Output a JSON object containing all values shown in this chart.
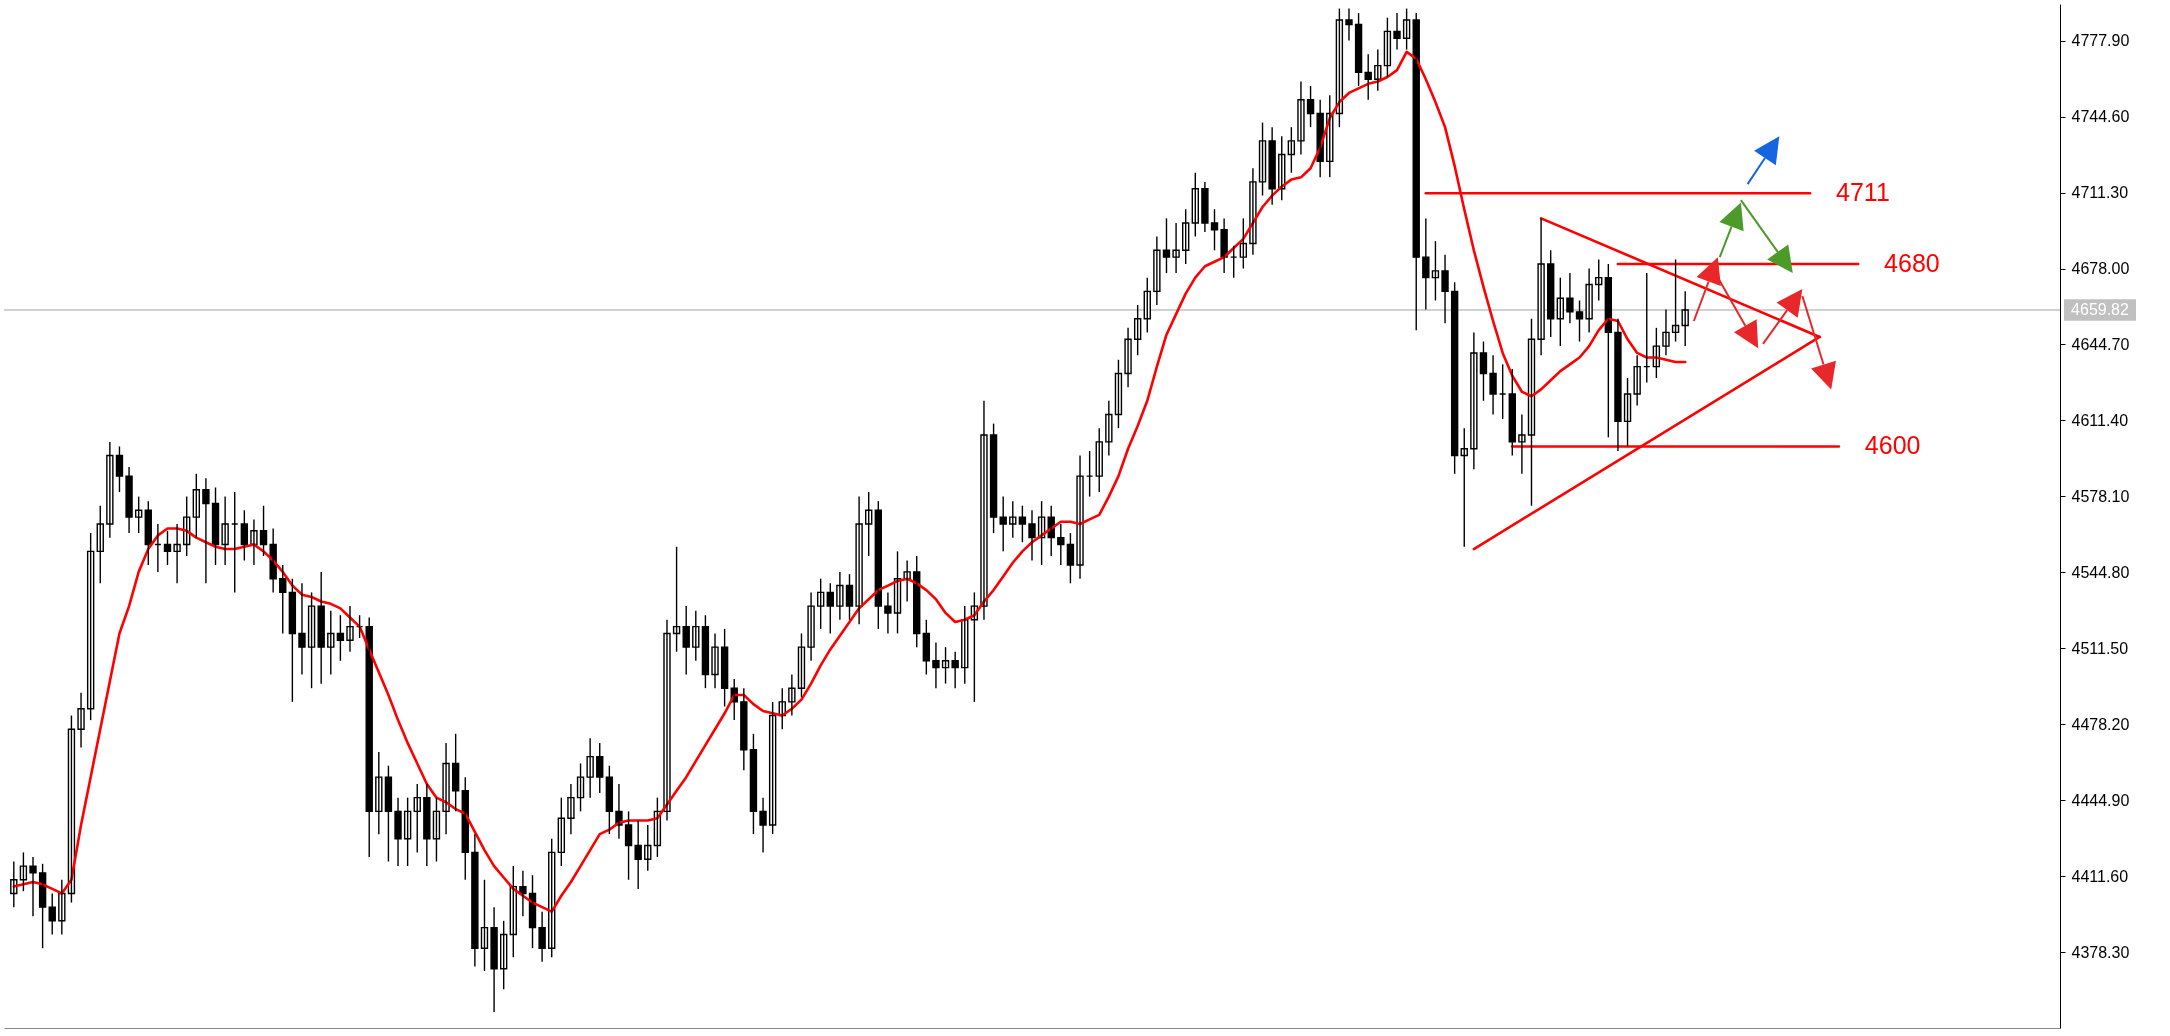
{
  "chart_data": {
    "type": "candlestick",
    "categories": [
      null,
      null,
      null,
      null,
      null,
      null,
      null,
      null,
      null,
      null,
      null,
      null,
      null,
      null,
      null,
      null,
      null,
      null,
      null,
      null,
      null,
      null,
      null,
      null,
      null,
      null,
      null,
      null,
      null,
      null,
      null,
      null,
      null,
      null,
      null,
      null,
      null,
      null,
      null,
      null,
      null,
      null,
      null,
      null,
      null,
      null,
      null,
      null,
      null,
      null,
      null,
      null,
      null,
      null,
      null,
      null,
      null,
      null,
      null,
      null,
      null,
      null,
      null,
      null,
      null,
      null,
      null,
      null,
      null,
      null,
      null,
      null,
      null,
      null,
      null,
      null,
      null,
      null,
      null,
      null,
      null,
      null,
      null,
      null,
      null,
      null,
      null,
      null,
      null,
      null,
      null,
      null,
      null,
      null,
      null,
      null,
      null,
      null,
      null,
      null,
      null,
      null,
      null,
      null,
      null,
      null,
      null,
      null,
      null,
      null,
      null,
      null,
      null,
      null,
      null,
      null,
      null,
      null,
      null,
      null,
      null,
      null,
      null,
      null,
      null,
      null,
      null,
      null,
      null,
      null,
      null,
      null,
      null,
      null,
      null,
      null,
      null,
      null,
      null,
      null,
      null,
      null,
      null,
      null,
      null,
      null,
      null,
      null,
      null,
      null,
      null,
      null,
      null,
      null,
      null,
      null,
      null,
      null,
      null,
      null,
      null,
      null,
      null,
      null,
      null,
      null,
      null,
      null,
      null,
      null,
      null,
      null,
      null,
      null,
      null,
      null,
      null,
      null,
      null,
      null,
      null,
      null,
      null,
      null,
      null,
      null,
      null,
      null,
      null,
      null,
      null,
      null,
      null,
      null,
      null,
      null,
      null,
      null,
      null,
      null,
      null,
      null,
      null,
      null,
      null,
      null,
      null,
      null,
      null,
      null,
      null,
      null,
      null
    ],
    "ohlc": [
      [
        4404,
        4418,
        4398,
        4410
      ],
      [
        4410,
        4422,
        4405,
        4416
      ],
      [
        4416,
        4420,
        4394,
        4413
      ],
      [
        4413,
        4417,
        4380,
        4398
      ],
      [
        4398,
        4404,
        4386,
        4392
      ],
      [
        4392,
        4410,
        4386,
        4404
      ],
      [
        4404,
        4482,
        4400,
        4476
      ],
      [
        4476,
        4492,
        4468,
        4485
      ],
      [
        4485,
        4562,
        4480,
        4554
      ],
      [
        4554,
        4574,
        4540,
        4566
      ],
      [
        4566,
        4602,
        4560,
        4596
      ],
      [
        4596,
        4600,
        4580,
        4587
      ],
      [
        4587,
        4591,
        4562,
        4569
      ],
      [
        4569,
        4578,
        4562,
        4572
      ],
      [
        4572,
        4576,
        4548,
        4557
      ],
      [
        4557,
        4566,
        4545,
        4557
      ],
      [
        4557,
        4563,
        4548,
        4554
      ],
      [
        4554,
        4566,
        4540,
        4557
      ],
      [
        4557,
        4578,
        4552,
        4569
      ],
      [
        4569,
        4588,
        4560,
        4581
      ],
      [
        4581,
        4586,
        4540,
        4575
      ],
      [
        4575,
        4582,
        4548,
        4557
      ],
      [
        4557,
        4578,
        4548,
        4566
      ],
      [
        4566,
        4580,
        4536,
        4566
      ],
      [
        4566,
        4572,
        4550,
        4557
      ],
      [
        4557,
        4568,
        4548,
        4563
      ],
      [
        4563,
        4574,
        4552,
        4557
      ],
      [
        4557,
        4564,
        4536,
        4542
      ],
      [
        4542,
        4548,
        4518,
        4536
      ],
      [
        4536,
        4542,
        4488,
        4518
      ],
      [
        4518,
        4540,
        4500,
        4512
      ],
      [
        4512,
        4536,
        4494,
        4530
      ],
      [
        4530,
        4545,
        4496,
        4512
      ],
      [
        4512,
        4528,
        4500,
        4518
      ],
      [
        4518,
        4526,
        4506,
        4515
      ],
      [
        4515,
        4530,
        4510,
        4521
      ],
      [
        4521,
        4526,
        4516,
        4521
      ],
      [
        4521,
        4525,
        4420,
        4440
      ],
      [
        4440,
        4466,
        4430,
        4455
      ],
      [
        4455,
        4460,
        4418,
        4440
      ],
      [
        4440,
        4446,
        4416,
        4428
      ],
      [
        4428,
        4446,
        4416,
        4440
      ],
      [
        4440,
        4452,
        4422,
        4446
      ],
      [
        4446,
        4452,
        4416,
        4428
      ],
      [
        4428,
        4446,
        4418,
        4440
      ],
      [
        4440,
        4470,
        4430,
        4461
      ],
      [
        4461,
        4474,
        4440,
        4449
      ],
      [
        4449,
        4455,
        4410,
        4422
      ],
      [
        4422,
        4430,
        4372,
        4380
      ],
      [
        4380,
        4410,
        4370,
        4389
      ],
      [
        4389,
        4398,
        4352,
        4371
      ],
      [
        4371,
        4392,
        4362,
        4386
      ],
      [
        4386,
        4416,
        4376,
        4407
      ],
      [
        4407,
        4414,
        4394,
        4404
      ],
      [
        4404,
        4412,
        4380,
        4389
      ],
      [
        4389,
        4396,
        4374,
        4380
      ],
      [
        4380,
        4428,
        4376,
        4422
      ],
      [
        4422,
        4446,
        4416,
        4437
      ],
      [
        4437,
        4452,
        4430,
        4446
      ],
      [
        4446,
        4461,
        4440,
        4455
      ],
      [
        4455,
        4472,
        4446,
        4464
      ],
      [
        4464,
        4470,
        4448,
        4455
      ],
      [
        4455,
        4460,
        4430,
        4440
      ],
      [
        4440,
        4452,
        4428,
        4434
      ],
      [
        4434,
        4440,
        4410,
        4425
      ],
      [
        4425,
        4436,
        4406,
        4419
      ],
      [
        4419,
        4434,
        4414,
        4425
      ],
      [
        4425,
        4446,
        4420,
        4440
      ],
      [
        4440,
        4524,
        4436,
        4518
      ],
      [
        4518,
        4556,
        4510,
        4521
      ],
      [
        4521,
        4530,
        4500,
        4512
      ],
      [
        4512,
        4528,
        4506,
        4521
      ],
      [
        4521,
        4526,
        4494,
        4500
      ],
      [
        4500,
        4518,
        4494,
        4512
      ],
      [
        4512,
        4520,
        4486,
        4494
      ],
      [
        4494,
        4498,
        4480,
        4488
      ],
      [
        4488,
        4494,
        4458,
        4467
      ],
      [
        4467,
        4474,
        4430,
        4440
      ],
      [
        4440,
        4446,
        4422,
        4434
      ],
      [
        4434,
        4488,
        4430,
        4482
      ],
      [
        4482,
        4494,
        4476,
        4488
      ],
      [
        4488,
        4500,
        4482,
        4494
      ],
      [
        4494,
        4518,
        4490,
        4512
      ],
      [
        4512,
        4536,
        4506,
        4530
      ],
      [
        4530,
        4542,
        4520,
        4536
      ],
      [
        4536,
        4540,
        4518,
        4530
      ],
      [
        4530,
        4545,
        4524,
        4539
      ],
      [
        4539,
        4544,
        4524,
        4530
      ],
      [
        4530,
        4578,
        4522,
        4566
      ],
      [
        4566,
        4580,
        4552,
        4572
      ],
      [
        4572,
        4576,
        4520,
        4530
      ],
      [
        4530,
        4536,
        4518,
        4527
      ],
      [
        4527,
        4554,
        4518,
        4542
      ],
      [
        4542,
        4550,
        4532,
        4545
      ],
      [
        4545,
        4552,
        4512,
        4518
      ],
      [
        4518,
        4524,
        4500,
        4506
      ],
      [
        4506,
        4514,
        4494,
        4503
      ],
      [
        4503,
        4512,
        4496,
        4506
      ],
      [
        4506,
        4510,
        4494,
        4503
      ],
      [
        4503,
        4530,
        4496,
        4524
      ],
      [
        4524,
        4536,
        4488,
        4530
      ],
      [
        4530,
        4620,
        4524,
        4605
      ],
      [
        4605,
        4610,
        4562,
        4569
      ],
      [
        4569,
        4578,
        4554,
        4566
      ],
      [
        4566,
        4576,
        4560,
        4569
      ],
      [
        4569,
        4574,
        4558,
        4566
      ],
      [
        4566,
        4572,
        4550,
        4560
      ],
      [
        4560,
        4576,
        4548,
        4569
      ],
      [
        4569,
        4574,
        4552,
        4560
      ],
      [
        4560,
        4566,
        4548,
        4557
      ],
      [
        4557,
        4562,
        4540,
        4548
      ],
      [
        4548,
        4596,
        4542,
        4587
      ],
      [
        4587,
        4598,
        4578,
        4587
      ],
      [
        4587,
        4608,
        4580,
        4602
      ],
      [
        4602,
        4620,
        4596,
        4614
      ],
      [
        4614,
        4638,
        4608,
        4632
      ],
      [
        4632,
        4652,
        4626,
        4647
      ],
      [
        4647,
        4662,
        4640,
        4656
      ],
      [
        4656,
        4674,
        4650,
        4668
      ],
      [
        4668,
        4692,
        4662,
        4686
      ],
      [
        4686,
        4700,
        4676,
        4683
      ],
      [
        4683,
        4698,
        4676,
        4686
      ],
      [
        4686,
        4704,
        4680,
        4698
      ],
      [
        4698,
        4720,
        4692,
        4713
      ],
      [
        4713,
        4716,
        4694,
        4698
      ],
      [
        4698,
        4704,
        4686,
        4695
      ],
      [
        4695,
        4700,
        4676,
        4683
      ],
      [
        4683,
        4688,
        4674,
        4683
      ],
      [
        4683,
        4700,
        4678,
        4689
      ],
      [
        4689,
        4722,
        4684,
        4716
      ],
      [
        4716,
        4742,
        4710,
        4734
      ],
      [
        4734,
        4740,
        4706,
        4713
      ],
      [
        4713,
        4736,
        4708,
        4728
      ],
      [
        4728,
        4740,
        4720,
        4734
      ],
      [
        4734,
        4760,
        4728,
        4752
      ],
      [
        4752,
        4758,
        4740,
        4746
      ],
      [
        4746,
        4752,
        4718,
        4725
      ],
      [
        4725,
        4754,
        4718,
        4746
      ],
      [
        4746,
        4792,
        4740,
        4787
      ],
      [
        4787,
        4792,
        4778,
        4785
      ],
      [
        4785,
        4790,
        4758,
        4764
      ],
      [
        4764,
        4772,
        4752,
        4761
      ],
      [
        4761,
        4774,
        4756,
        4767
      ],
      [
        4767,
        4788,
        4762,
        4782
      ],
      [
        4782,
        4790,
        4774,
        4779
      ],
      [
        4779,
        4792,
        4774,
        4787
      ],
      [
        4787,
        4790,
        4651,
        4683
      ],
      [
        4683,
        4700,
        4660,
        4674
      ],
      [
        4674,
        4690,
        4664,
        4677
      ],
      [
        4677,
        4684,
        4654,
        4668
      ],
      [
        4668,
        4672,
        4588,
        4596
      ],
      [
        4596,
        4608,
        4556,
        4599
      ],
      [
        4599,
        4650,
        4590,
        4641
      ],
      [
        4641,
        4646,
        4620,
        4632
      ],
      [
        4632,
        4640,
        4614,
        4623
      ],
      [
        4623,
        4636,
        4612,
        4623
      ],
      [
        4623,
        4634,
        4596,
        4602
      ],
      [
        4602,
        4614,
        4588,
        4605
      ],
      [
        4605,
        4656,
        4574,
        4647
      ],
      [
        4647,
        4700,
        4640,
        4680
      ],
      [
        4680,
        4686,
        4648,
        4656
      ],
      [
        4656,
        4674,
        4644,
        4665
      ],
      [
        4665,
        4676,
        4654,
        4659
      ],
      [
        4659,
        4664,
        4646,
        4656
      ],
      [
        4656,
        4678,
        4650,
        4671
      ],
      [
        4671,
        4682,
        4664,
        4674
      ],
      [
        4674,
        4680,
        4604,
        4650
      ],
      [
        4650,
        4656,
        4598,
        4611
      ],
      [
        4611,
        4630,
        4600,
        4623
      ],
      [
        4623,
        4640,
        4618,
        4635
      ],
      [
        4635,
        4676,
        4628,
        4635
      ],
      [
        4635,
        4652,
        4630,
        4644
      ],
      [
        4644,
        4660,
        4640,
        4650
      ],
      [
        4650,
        4682,
        4646,
        4653
      ],
      [
        4653,
        4668,
        4644,
        4659.82
      ],
      null,
      null,
      null,
      null,
      null,
      null,
      null,
      null,
      null,
      null,
      null,
      null,
      null,
      null,
      null,
      null,
      null,
      null,
      null,
      null,
      null,
      null,
      null,
      null,
      null,
      null,
      null,
      null,
      null,
      null,
      null,
      null,
      null,
      null,
      null,
      null,
      null,
      null
    ],
    "series": [
      {
        "type": "line",
        "color": "#ff0000",
        "values": [
          4407,
          4408,
          4409,
          4408,
          4406,
          4404,
          4410,
          4434,
          4455,
          4476,
          4497,
          4518,
          4530,
          4545,
          4555,
          4561,
          4564,
          4564,
          4563,
          4560,
          4558,
          4556,
          4555,
          4555,
          4556,
          4557,
          4554,
          4550,
          4545,
          4539,
          4535,
          4534,
          4532,
          4531,
          4529,
          4525,
          4521,
          4511,
          4501,
          4491,
          4480,
          4470,
          4461,
          4452,
          4446,
          4444,
          4441,
          4439,
          4431,
          4423,
          4416,
          4411,
          4406,
          4403,
          4400,
          4398,
          4396,
          4403,
          4409,
          4416,
          4423,
          4430,
          4432,
          4435,
          4436,
          4436,
          4436,
          4437,
          4443,
          4449,
          4455,
          4462,
          4469,
          4476,
          4483,
          4491,
          4491,
          4487,
          4484,
          4483,
          4482,
          4485,
          4489,
          4496,
          4504,
          4511,
          4517,
          4523,
          4529,
          4533,
          4537,
          4539,
          4541,
          4542,
          4540,
          4537,
          4533,
          4527,
          4523,
          4524,
          4526,
          4532,
          4537,
          4543,
          4549,
          4554,
          4558,
          4561,
          4564,
          4567,
          4567,
          4566,
          4568,
          4570,
          4578,
          4587,
          4599,
          4609,
          4620,
          4635,
          4649,
          4658,
          4667,
          4674,
          4679,
          4681,
          4683,
          4687,
          4691,
          4698,
          4705,
          4710,
          4714,
          4717,
          4718,
          4722,
          4731,
          4744,
          4751,
          4755,
          4757,
          4759,
          4760,
          4762,
          4765,
          4773,
          4770,
          4761,
          4751,
          4740,
          4723,
          4704,
          4686,
          4670,
          4655,
          4641,
          4631,
          4624,
          4622,
          4625,
          4629,
          4633,
          4636,
          4639,
          4644,
          4651,
          4656,
          4655,
          4647,
          4641,
          4639,
          4639,
          4638,
          4637,
          4637,
          null,
          null,
          null,
          null,
          null,
          null,
          null,
          null,
          null,
          null,
          null,
          null,
          null,
          null,
          null,
          null,
          null,
          null,
          null,
          null,
          null,
          null,
          null,
          null,
          null,
          null,
          null,
          null,
          null,
          null,
          null,
          null,
          null,
          null,
          null,
          null,
          null,
          null
        ]
      },
      {
        "type": "line",
        "color": "#ff0000",
        "values": [
          null,
          null,
          null,
          null,
          null,
          null,
          null,
          null,
          null,
          null,
          null,
          null,
          null,
          null,
          null,
          null,
          null,
          null,
          null,
          null,
          null,
          null,
          null,
          null,
          null,
          null,
          null,
          null,
          null,
          null,
          null,
          null,
          null,
          null,
          null,
          null,
          null,
          null,
          null,
          null,
          null,
          null,
          null,
          null,
          null,
          null,
          null,
          null,
          null,
          null,
          null,
          null,
          null,
          null,
          null,
          null,
          null,
          null,
          null,
          null,
          null,
          null,
          null,
          null,
          null,
          null,
          null,
          null,
          null,
          null,
          null,
          null,
          null,
          null,
          null,
          null,
          null,
          null,
          null,
          null,
          null,
          null,
          null,
          null,
          null,
          null,
          null,
          null,
          null,
          null,
          null,
          null,
          null,
          null,
          null,
          null,
          null,
          null,
          null,
          null,
          null,
          null,
          null,
          null,
          null,
          null,
          null,
          null,
          null,
          null,
          null,
          null,
          null,
          null,
          null,
          null,
          null,
          null,
          null,
          null,
          null,
          null,
          null,
          null,
          null,
          null,
          null,
          null,
          null,
          null,
          null,
          null,
          null,
          null,
          null,
          null,
          null,
          null,
          null,
          null,
          null,
          null,
          null,
          null,
          null,
          null,
          null,
          null,
          null,
          null,
          null,
          null,
          null,
          null,
          null,
          null,
          null,
          null,
          null,
          4700,
          null,
          null,
          null,
          null,
          null,
          null,
          null,
          null,
          null,
          null,
          null,
          null,
          null,
          null,
          null,
          null,
          null,
          null,
          null,
          null,
          null,
          null,
          null,
          null,
          null,
          null,
          null,
          null,
          4648,
          null,
          null,
          null,
          null,
          null,
          null,
          null,
          null,
          null,
          null,
          null,
          null,
          null,
          null,
          null,
          null,
          null,
          null,
          null,
          null,
          null,
          null,
          null,
          null
        ]
      },
      {
        "type": "line",
        "color": "#ff0000",
        "values": [
          null,
          null,
          null,
          null,
          null,
          null,
          null,
          null,
          null,
          null,
          null,
          null,
          null,
          null,
          null,
          null,
          null,
          null,
          null,
          null,
          null,
          null,
          null,
          null,
          null,
          null,
          null,
          null,
          null,
          null,
          null,
          null,
          null,
          null,
          null,
          null,
          null,
          null,
          null,
          null,
          null,
          null,
          null,
          null,
          null,
          null,
          null,
          null,
          null,
          null,
          null,
          null,
          null,
          null,
          null,
          null,
          null,
          null,
          null,
          null,
          null,
          null,
          null,
          null,
          null,
          null,
          null,
          null,
          null,
          null,
          null,
          null,
          null,
          null,
          null,
          null,
          null,
          null,
          null,
          null,
          null,
          null,
          null,
          null,
          null,
          null,
          null,
          null,
          null,
          null,
          null,
          null,
          null,
          null,
          null,
          null,
          null,
          null,
          null,
          null,
          null,
          null,
          null,
          null,
          null,
          null,
          null,
          null,
          null,
          null,
          null,
          null,
          null,
          null,
          null,
          null,
          null,
          null,
          null,
          null,
          null,
          null,
          null,
          null,
          null,
          null,
          null,
          null,
          null,
          null,
          null,
          null,
          null,
          null,
          null,
          null,
          null,
          null,
          null,
          null,
          null,
          null,
          null,
          null,
          null,
          null,
          null,
          null,
          null,
          null,
          null,
          null,
          4555,
          null,
          null,
          null,
          null,
          null,
          null,
          null,
          null,
          null,
          null,
          null,
          null,
          null,
          null,
          null,
          null,
          null,
          null,
          null,
          null,
          null,
          null,
          null,
          null,
          null,
          null,
          null,
          null,
          null,
          null,
          null,
          null,
          null,
          null,
          null,
          4648,
          null,
          null,
          null,
          null,
          null,
          null,
          null,
          null,
          null,
          null,
          null,
          null,
          null,
          null,
          null,
          null,
          null,
          null,
          null,
          null,
          null,
          null,
          null,
          null
        ]
      },
      {
        "name": "4711",
        "type": "line",
        "color": "#ff0000",
        "values": [
          null,
          null,
          null,
          null,
          null,
          null,
          null,
          null,
          null,
          null,
          null,
          null,
          null,
          null,
          null,
          null,
          null,
          null,
          null,
          null,
          null,
          null,
          null,
          null,
          null,
          null,
          null,
          null,
          null,
          null,
          null,
          null,
          null,
          null,
          null,
          null,
          null,
          null,
          null,
          null,
          null,
          null,
          null,
          null,
          null,
          null,
          null,
          null,
          null,
          null,
          null,
          null,
          null,
          null,
          null,
          null,
          null,
          null,
          null,
          null,
          null,
          null,
          null,
          null,
          null,
          null,
          null,
          null,
          null,
          null,
          null,
          null,
          null,
          null,
          null,
          null,
          null,
          null,
          null,
          null,
          null,
          null,
          null,
          null,
          null,
          null,
          null,
          null,
          null,
          null,
          null,
          null,
          null,
          null,
          null,
          null,
          null,
          null,
          null,
          null,
          null,
          null,
          null,
          null,
          null,
          null,
          null,
          null,
          null,
          null,
          null,
          null,
          null,
          null,
          null,
          null,
          null,
          null,
          null,
          null,
          null,
          null,
          null,
          null,
          null,
          null,
          null,
          null,
          null,
          null,
          null,
          null,
          null,
          null,
          null,
          null,
          null,
          null,
          null,
          null,
          null,
          null,
          null,
          null,
          null,
          null,
          null,
          4711,
          null,
          null,
          null,
          null,
          null,
          null,
          null,
          null,
          null,
          null,
          null,
          null,
          null,
          null,
          null,
          null,
          null,
          null,
          null,
          null,
          null,
          null,
          null,
          null,
          null,
          null,
          null,
          null,
          null,
          null,
          null,
          null,
          null,
          null,
          null,
          null,
          null,
          null,
          null,
          4711,
          null,
          null,
          null,
          null,
          null,
          null,
          null,
          null,
          null,
          null,
          null,
          null,
          null,
          null,
          null,
          null,
          null,
          null,
          null,
          null,
          null,
          null,
          null,
          null,
          null
        ]
      },
      {
        "name": "4680",
        "type": "line",
        "color": "#ff0000",
        "values": [
          null,
          null,
          null,
          null,
          null,
          null,
          null,
          null,
          null,
          null,
          null,
          null,
          null,
          null,
          null,
          null,
          null,
          null,
          null,
          null,
          null,
          null,
          null,
          null,
          null,
          null,
          null,
          null,
          null,
          null,
          null,
          null,
          null,
          null,
          null,
          null,
          null,
          null,
          null,
          null,
          null,
          null,
          null,
          null,
          null,
          null,
          null,
          null,
          null,
          null,
          null,
          null,
          null,
          null,
          null,
          null,
          null,
          null,
          null,
          null,
          null,
          null,
          null,
          null,
          null,
          null,
          null,
          null,
          null,
          null,
          null,
          null,
          null,
          null,
          null,
          null,
          null,
          null,
          null,
          null,
          null,
          null,
          null,
          null,
          null,
          null,
          null,
          null,
          null,
          null,
          null,
          null,
          null,
          null,
          null,
          null,
          null,
          null,
          null,
          null,
          null,
          null,
          null,
          null,
          null,
          null,
          null,
          null,
          null,
          null,
          null,
          null,
          null,
          null,
          null,
          null,
          null,
          null,
          null,
          null,
          null,
          null,
          null,
          null,
          null,
          null,
          null,
          null,
          null,
          null,
          null,
          null,
          null,
          null,
          null,
          null,
          null,
          null,
          null,
          null,
          null,
          null,
          null,
          null,
          null,
          null,
          null,
          null,
          null,
          null,
          null,
          null,
          null,
          null,
          null,
          null,
          null,
          null,
          null,
          null,
          null,
          null,
          null,
          null,
          null,
          null,
          null,
          4680,
          null,
          null,
          null,
          null,
          null,
          null,
          null,
          null,
          null,
          null,
          null,
          null,
          null,
          null,
          null,
          null,
          null,
          null,
          null,
          null,
          null,
          null,
          null,
          null,
          4680,
          null,
          null,
          null,
          null,
          null,
          null,
          null,
          null,
          null,
          null,
          null,
          null,
          null,
          null,
          null,
          null,
          null,
          null,
          null,
          null
        ]
      },
      {
        "name": "4600",
        "type": "line",
        "color": "#ff0000",
        "values": [
          null,
          null,
          null,
          null,
          null,
          null,
          null,
          null,
          null,
          null,
          null,
          null,
          null,
          null,
          null,
          null,
          null,
          null,
          null,
          null,
          null,
          null,
          null,
          null,
          null,
          null,
          null,
          null,
          null,
          null,
          null,
          null,
          null,
          null,
          null,
          null,
          null,
          null,
          null,
          null,
          null,
          null,
          null,
          null,
          null,
          null,
          null,
          null,
          null,
          null,
          null,
          null,
          null,
          null,
          null,
          null,
          null,
          null,
          null,
          null,
          null,
          null,
          null,
          null,
          null,
          null,
          null,
          null,
          null,
          null,
          null,
          null,
          null,
          null,
          null,
          null,
          null,
          null,
          null,
          null,
          null,
          null,
          null,
          null,
          null,
          null,
          null,
          null,
          null,
          null,
          null,
          null,
          null,
          null,
          null,
          null,
          null,
          null,
          null,
          null,
          null,
          null,
          null,
          null,
          null,
          null,
          null,
          null,
          null,
          null,
          null,
          null,
          null,
          null,
          null,
          null,
          null,
          null,
          null,
          null,
          null,
          null,
          null,
          null,
          null,
          null,
          null,
          null,
          null,
          null,
          null,
          null,
          null,
          null,
          null,
          null,
          null,
          null,
          null,
          null,
          null,
          null,
          null,
          null,
          null,
          null,
          null,
          null,
          null,
          null,
          null,
          null,
          null,
          null,
          null,
          null,
          4600,
          null,
          null,
          null,
          null,
          null,
          null,
          null,
          null,
          null,
          null,
          null,
          null,
          null,
          null,
          null,
          null,
          null,
          null,
          null,
          null,
          null,
          null,
          null,
          null,
          null,
          null,
          null,
          null,
          null,
          null,
          null,
          null,
          null,
          4600,
          null,
          null,
          null,
          null,
          null,
          null,
          null,
          null,
          null,
          null,
          null,
          null,
          null,
          null,
          null,
          null,
          null,
          null,
          null,
          null,
          null,
          null
        ]
      }
    ],
    "ylim": [
      4345,
      4794
    ],
    "yticks": [
      {
        "value": 4378.3,
        "label": "4378.30"
      },
      {
        "value": 4411.6,
        "label": "4411.60"
      },
      {
        "value": 4444.9,
        "label": "4444.90"
      },
      {
        "value": 4478.2,
        "label": "4478.20"
      },
      {
        "value": 4511.5,
        "label": "4511.50"
      },
      {
        "value": 4544.8,
        "label": "4544.80"
      },
      {
        "value": 4578.1,
        "label": "4578.10"
      },
      {
        "value": 4611.4,
        "label": "4611.40"
      },
      {
        "value": 4644.7,
        "label": "4644.70"
      },
      {
        "value": 4678,
        "label": "4678.00"
      },
      {
        "value": 4711.3,
        "label": "4711.30"
      },
      {
        "value": 4744.6,
        "label": "4744.60"
      },
      {
        "value": 4777.9,
        "label": "4777.90"
      }
    ],
    "ref_lines": [
      {
        "axis": "y",
        "value": 4659.82,
        "label": "4659.82",
        "color": "#c0c0c0"
      }
    ],
    "tick_labels": "y"
  }
}
